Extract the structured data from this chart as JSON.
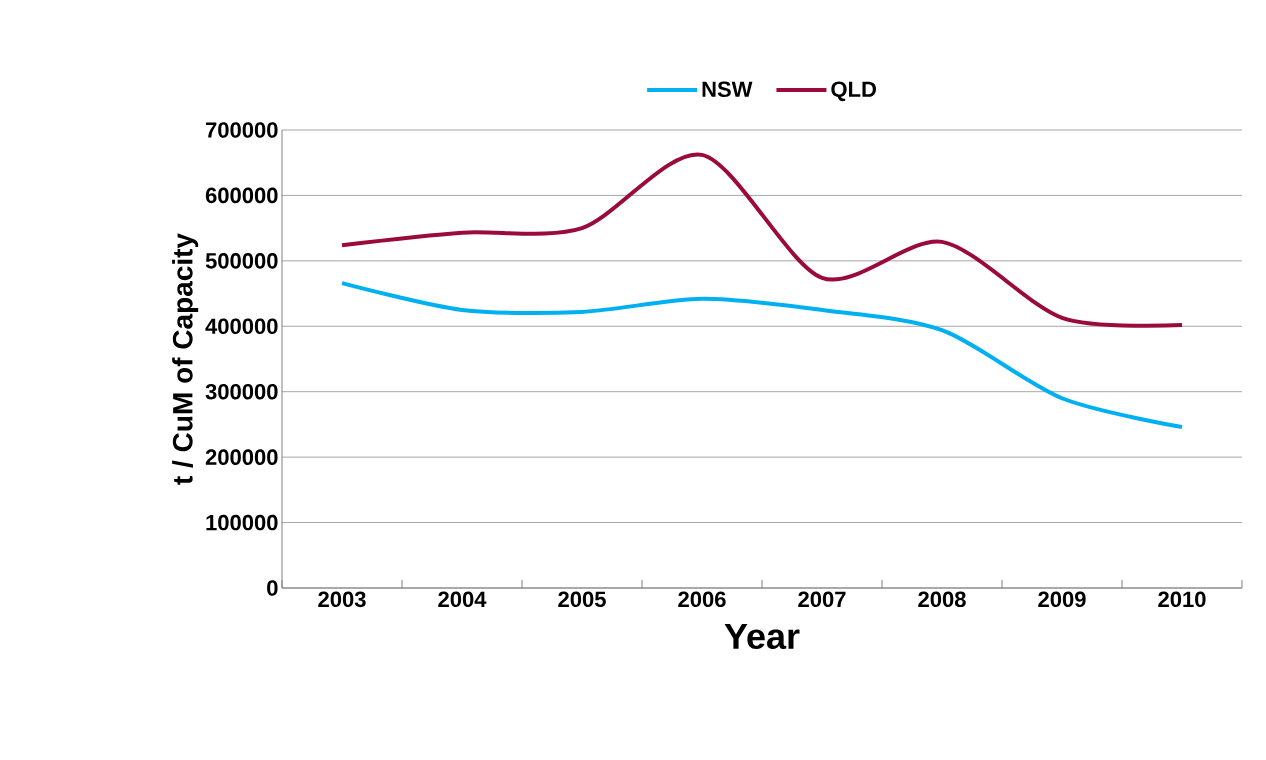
{
  "chart_data": {
    "type": "line",
    "xlabel": "Year",
    "ylabel": "t / CuM of Capacity",
    "categories": [
      "2003",
      "2004",
      "2005",
      "2006",
      "2007",
      "2008",
      "2009",
      "2010"
    ],
    "series": [
      {
        "name": "NSW",
        "color": "#00b0f0",
        "values": [
          466000,
          425000,
          422000,
          442000,
          425000,
          394000,
          290000,
          246000
        ]
      },
      {
        "name": "QLD",
        "color": "#9b0a3c",
        "values": [
          524000,
          543000,
          550000,
          662000,
          474000,
          529000,
          413000,
          402000
        ]
      }
    ],
    "ylim": [
      0,
      700000
    ],
    "yticks": [
      0,
      100000,
      200000,
      300000,
      400000,
      500000,
      600000,
      700000
    ],
    "grid": "y",
    "legend": "top",
    "marker": "none",
    "line_style": "solid"
  }
}
